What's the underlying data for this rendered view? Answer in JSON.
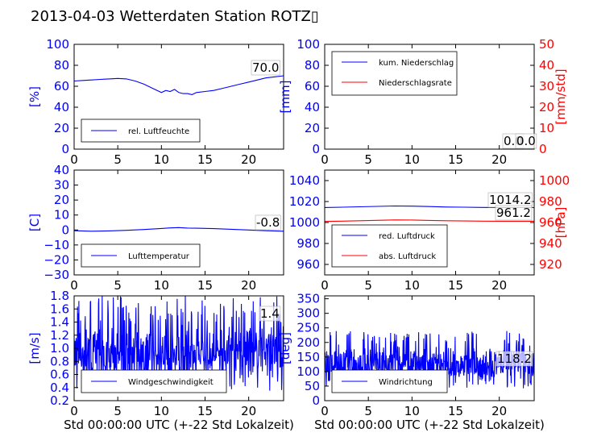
{
  "title": "2013-04-03 Wetterdaten Station ROTZ▯",
  "colors": {
    "blue": "#0000ff",
    "red": "#ff0000",
    "black": "#000000"
  },
  "chart_data": [
    {
      "id": "humidity",
      "type": "line",
      "ylabel": "[%]",
      "xlabel": "",
      "xlim": [
        0,
        24
      ],
      "ylim": [
        0,
        100
      ],
      "xticks": [
        "0",
        "5",
        "10",
        "15",
        "20"
      ],
      "yticks": [
        "0",
        "20",
        "40",
        "60",
        "80",
        "100"
      ],
      "legend": {
        "placement": "lower-left",
        "entries": [
          "rel. Luftfeuchte"
        ]
      },
      "annotations": [
        "70.0"
      ],
      "series": [
        {
          "name": "rel. Luftfeuchte",
          "color": "#0000ff",
          "x": [
            0,
            1,
            2,
            3,
            4,
            5,
            6,
            7,
            8,
            9,
            10,
            10.5,
            11,
            11.5,
            12,
            12.5,
            13,
            13.5,
            14,
            15,
            16,
            17,
            18,
            19,
            20,
            21,
            22,
            23,
            24
          ],
          "y": [
            65,
            65.5,
            66,
            66.5,
            67,
            67.5,
            67,
            65,
            62,
            58,
            54,
            56,
            55,
            57,
            54,
            53,
            53,
            52,
            54,
            55,
            56,
            58,
            60,
            62,
            64,
            66,
            68,
            69,
            70
          ]
        }
      ]
    },
    {
      "id": "precip",
      "type": "line",
      "ylabel": "[mm]",
      "ylabel2": "[mm/std]",
      "xlabel": "",
      "xlim": [
        0,
        24
      ],
      "ylim": [
        0,
        100
      ],
      "ylim2": [
        0,
        50
      ],
      "xticks": [
        "0",
        "5",
        "10",
        "15",
        "20"
      ],
      "yticks": [
        "0",
        "20",
        "40",
        "60",
        "80",
        "100"
      ],
      "yticks2": [
        "0",
        "10",
        "20",
        "30",
        "40",
        "50"
      ],
      "legend": {
        "placement": "upper-left",
        "entries": [
          "kum. Niederschlag",
          "Niederschlagsrate"
        ]
      },
      "annotations": [
        "0.0",
        "0.0"
      ],
      "series": [
        {
          "name": "kum. Niederschlag",
          "color": "#0000ff",
          "axis": "left",
          "x": [
            0,
            24
          ],
          "y": [
            0,
            0
          ]
        },
        {
          "name": "Niederschlagsrate",
          "color": "#ff0000",
          "axis": "right",
          "x": [
            0,
            24
          ],
          "y": [
            0,
            0
          ]
        }
      ]
    },
    {
      "id": "temperature",
      "type": "line",
      "ylabel": "[C]",
      "xlabel": "",
      "xlim": [
        0,
        24
      ],
      "ylim": [
        -30,
        40
      ],
      "xticks": [
        "0",
        "5",
        "10",
        "15",
        "20"
      ],
      "yticks": [
        "−30",
        "−20",
        "−10",
        "0",
        "10",
        "20",
        "30",
        "40"
      ],
      "legend": {
        "placement": "lower-left",
        "entries": [
          "Lufttemperatur"
        ]
      },
      "annotations": [
        "-0.8"
      ],
      "series": [
        {
          "name": "Lufttemperatur",
          "color": "#0000ff",
          "x": [
            0,
            2,
            4,
            6,
            8,
            10,
            11,
            12,
            13,
            14,
            16,
            18,
            20,
            22,
            24
          ],
          "y": [
            -0.5,
            -0.8,
            -0.6,
            -0.2,
            0.3,
            1.0,
            1.4,
            1.6,
            1.3,
            1.2,
            0.9,
            0.5,
            0.0,
            -0.5,
            -0.8
          ]
        }
      ]
    },
    {
      "id": "pressure",
      "type": "line",
      "ylabel": "",
      "ylabel2": "[hPa]",
      "xlabel": "",
      "xlim": [
        0,
        24
      ],
      "ylim": [
        950,
        1050
      ],
      "ylim2": [
        910,
        1010
      ],
      "xticks": [
        "0",
        "5",
        "10",
        "15",
        "20"
      ],
      "yticks": [
        "960",
        "980",
        "1000",
        "1020",
        "1040"
      ],
      "yticks2": [
        "920",
        "940",
        "960",
        "980",
        "1000"
      ],
      "legend": {
        "placement": "lower-left",
        "entries": [
          "red. Luftdruck",
          "abs. Luftdruck"
        ]
      },
      "annotations": [
        "1014.2",
        "961.2"
      ],
      "series": [
        {
          "name": "red. Luftdruck",
          "color": "#0000ff",
          "axis": "left",
          "x": [
            0,
            2,
            4,
            6,
            8,
            10,
            12,
            14,
            16,
            18,
            20,
            22,
            24
          ],
          "y": [
            1014.3,
            1014.6,
            1015.0,
            1015.4,
            1015.8,
            1015.6,
            1015.2,
            1014.8,
            1014.6,
            1014.4,
            1014.3,
            1014.2,
            1014.2
          ]
        },
        {
          "name": "abs. Luftdruck",
          "color": "#ff0000",
          "axis": "right",
          "x": [
            0,
            2,
            4,
            6,
            8,
            10,
            12,
            14,
            16,
            18,
            20,
            22,
            24
          ],
          "y": [
            961.0,
            961.3,
            961.7,
            962.1,
            962.5,
            962.4,
            962.0,
            961.7,
            961.5,
            961.3,
            961.2,
            961.2,
            961.2
          ]
        }
      ]
    },
    {
      "id": "windspeed",
      "type": "line",
      "ylabel": "[m/s]",
      "xlabel": "Std 00:00:00 UTC (+-22 Std Lokalzeit)",
      "xlim": [
        0,
        24
      ],
      "ylim": [
        0.2,
        1.8
      ],
      "xticks": [
        "0",
        "5",
        "10",
        "15",
        "20"
      ],
      "yticks": [
        "0.2",
        "0.4",
        "0.6",
        "0.8",
        "1.0",
        "1.2",
        "1.4",
        "1.6",
        "1.8"
      ],
      "legend": {
        "placement": "lower-left",
        "entries": [
          "Windgeschwindigkeit"
        ]
      },
      "annotations": [
        "1.4"
      ],
      "series": [
        {
          "name": "Windgeschwindigkeit",
          "color": "#0000ff",
          "noise": true,
          "x": [
            0,
            24
          ],
          "y_center": 0.95,
          "y_min": 0.35,
          "y_max": 1.8
        }
      ]
    },
    {
      "id": "winddir",
      "type": "line",
      "ylabel": "[deg]",
      "xlabel": "Std 00:00:00 UTC (+-22 Std Lokalzeit)",
      "xlim": [
        0,
        24
      ],
      "ylim": [
        0,
        360
      ],
      "xticks": [
        "0",
        "5",
        "10",
        "15",
        "20"
      ],
      "yticks": [
        "0",
        "50",
        "100",
        "150",
        "200",
        "250",
        "300",
        "350"
      ],
      "legend": {
        "placement": "lower-left",
        "entries": [
          "Windrichtung"
        ]
      },
      "annotations": [
        "118.2"
      ],
      "series": [
        {
          "name": "Windrichtung",
          "color": "#0000ff",
          "noise": true,
          "x": [
            0,
            24
          ],
          "y_center": 125,
          "y_min": 40,
          "y_max": 240
        }
      ]
    }
  ]
}
